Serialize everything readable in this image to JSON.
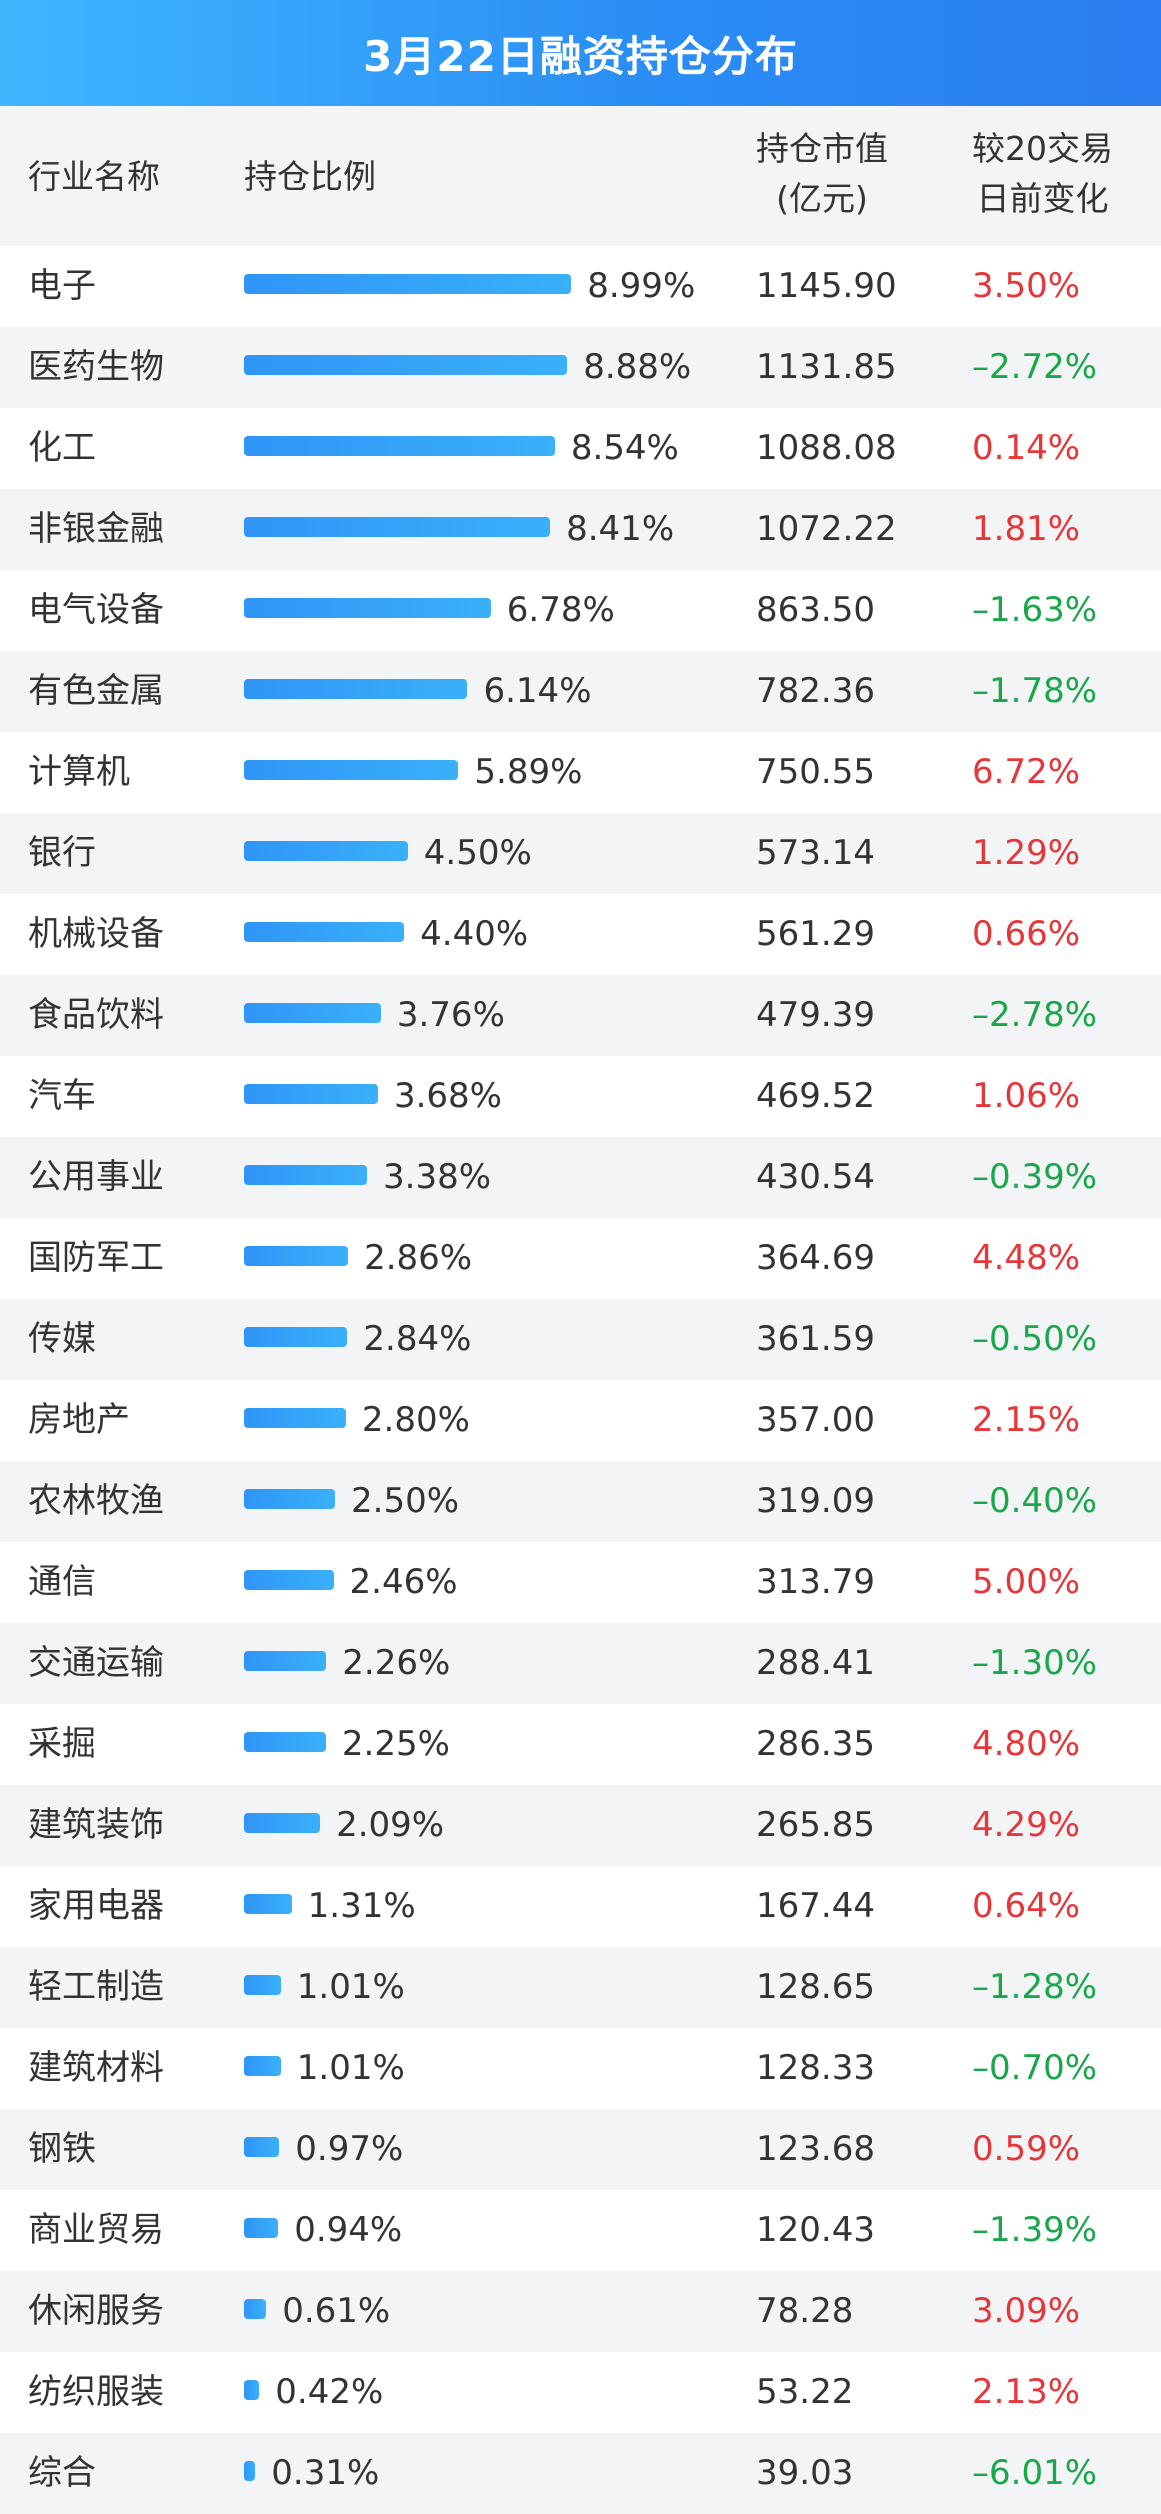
{
  "title": "3月22日融资持仓分布",
  "header": {
    "name": "行业名称",
    "ratio": "持仓比例",
    "value_line1": "持仓市值",
    "value_line2": "(亿元)",
    "change_line1": "较20交易",
    "change_line2": "日前变化"
  },
  "colors": {
    "title_bar": "#2a8ef5",
    "bar": "#2f95f7",
    "positive": "#e5363a",
    "negative": "#1aa64a",
    "stripe": "#f3f4f6"
  },
  "chart_data": {
    "type": "bar",
    "title": "3月22日融资持仓分布",
    "columns": [
      "行业名称",
      "持仓比例",
      "持仓市值(亿元)",
      "较20交易日前变化"
    ],
    "rows": [
      {
        "name": "电子",
        "ratio": 8.99,
        "ratio_label": "8.99%",
        "value": "1145.90",
        "change": "3.50%",
        "dir": "pos"
      },
      {
        "name": "医药生物",
        "ratio": 8.88,
        "ratio_label": "8.88%",
        "value": "1131.85",
        "change": "–2.72%",
        "dir": "neg"
      },
      {
        "name": "化工",
        "ratio": 8.54,
        "ratio_label": "8.54%",
        "value": "1088.08",
        "change": "0.14%",
        "dir": "pos"
      },
      {
        "name": "非银金融",
        "ratio": 8.41,
        "ratio_label": "8.41%",
        "value": "1072.22",
        "change": "1.81%",
        "dir": "pos"
      },
      {
        "name": "电气设备",
        "ratio": 6.78,
        "ratio_label": "6.78%",
        "value": "863.50",
        "change": "–1.63%",
        "dir": "neg"
      },
      {
        "name": "有色金属",
        "ratio": 6.14,
        "ratio_label": "6.14%",
        "value": "782.36",
        "change": "–1.78%",
        "dir": "neg"
      },
      {
        "name": "计算机",
        "ratio": 5.89,
        "ratio_label": "5.89%",
        "value": "750.55",
        "change": "6.72%",
        "dir": "pos"
      },
      {
        "name": "银行",
        "ratio": 4.5,
        "ratio_label": "4.50%",
        "value": "573.14",
        "change": "1.29%",
        "dir": "pos"
      },
      {
        "name": "机械设备",
        "ratio": 4.4,
        "ratio_label": "4.40%",
        "value": "561.29",
        "change": "0.66%",
        "dir": "pos"
      },
      {
        "name": "食品饮料",
        "ratio": 3.76,
        "ratio_label": "3.76%",
        "value": "479.39",
        "change": "–2.78%",
        "dir": "neg"
      },
      {
        "name": "汽车",
        "ratio": 3.68,
        "ratio_label": "3.68%",
        "value": "469.52",
        "change": "1.06%",
        "dir": "pos"
      },
      {
        "name": "公用事业",
        "ratio": 3.38,
        "ratio_label": "3.38%",
        "value": "430.54",
        "change": "–0.39%",
        "dir": "neg"
      },
      {
        "name": "国防军工",
        "ratio": 2.86,
        "ratio_label": "2.86%",
        "value": "364.69",
        "change": "4.48%",
        "dir": "pos"
      },
      {
        "name": "传媒",
        "ratio": 2.84,
        "ratio_label": "2.84%",
        "value": "361.59",
        "change": "–0.50%",
        "dir": "neg"
      },
      {
        "name": "房地产",
        "ratio": 2.8,
        "ratio_label": "2.80%",
        "value": "357.00",
        "change": "2.15%",
        "dir": "pos"
      },
      {
        "name": "农林牧渔",
        "ratio": 2.5,
        "ratio_label": "2.50%",
        "value": "319.09",
        "change": "–0.40%",
        "dir": "neg"
      },
      {
        "name": "通信",
        "ratio": 2.46,
        "ratio_label": "2.46%",
        "value": "313.79",
        "change": "5.00%",
        "dir": "pos"
      },
      {
        "name": "交通运输",
        "ratio": 2.26,
        "ratio_label": "2.26%",
        "value": "288.41",
        "change": "–1.30%",
        "dir": "neg"
      },
      {
        "name": "采掘",
        "ratio": 2.25,
        "ratio_label": "2.25%",
        "value": "286.35",
        "change": "4.80%",
        "dir": "pos"
      },
      {
        "name": "建筑装饰",
        "ratio": 2.09,
        "ratio_label": "2.09%",
        "value": "265.85",
        "change": "4.29%",
        "dir": "pos"
      },
      {
        "name": "家用电器",
        "ratio": 1.31,
        "ratio_label": "1.31%",
        "value": "167.44",
        "change": "0.64%",
        "dir": "pos"
      },
      {
        "name": "轻工制造",
        "ratio": 1.01,
        "ratio_label": "1.01%",
        "value": "128.65",
        "change": "–1.28%",
        "dir": "neg"
      },
      {
        "name": "建筑材料",
        "ratio": 1.01,
        "ratio_label": "1.01%",
        "value": "128.33",
        "change": "–0.70%",
        "dir": "neg"
      },
      {
        "name": "钢铁",
        "ratio": 0.97,
        "ratio_label": "0.97%",
        "value": "123.68",
        "change": "0.59%",
        "dir": "pos"
      },
      {
        "name": "商业贸易",
        "ratio": 0.94,
        "ratio_label": "0.94%",
        "value": "120.43",
        "change": "–1.39%",
        "dir": "neg"
      },
      {
        "name": "休闲服务",
        "ratio": 0.61,
        "ratio_label": "0.61%",
        "value": "78.28",
        "change": "3.09%",
        "dir": "pos"
      },
      {
        "name": "纺织服装",
        "ratio": 0.42,
        "ratio_label": "0.42%",
        "value": "53.22",
        "change": "2.13%",
        "dir": "pos"
      },
      {
        "name": "综合",
        "ratio": 0.31,
        "ratio_label": "0.31%",
        "value": "39.03",
        "change": "–6.01%",
        "dir": "neg"
      }
    ]
  }
}
